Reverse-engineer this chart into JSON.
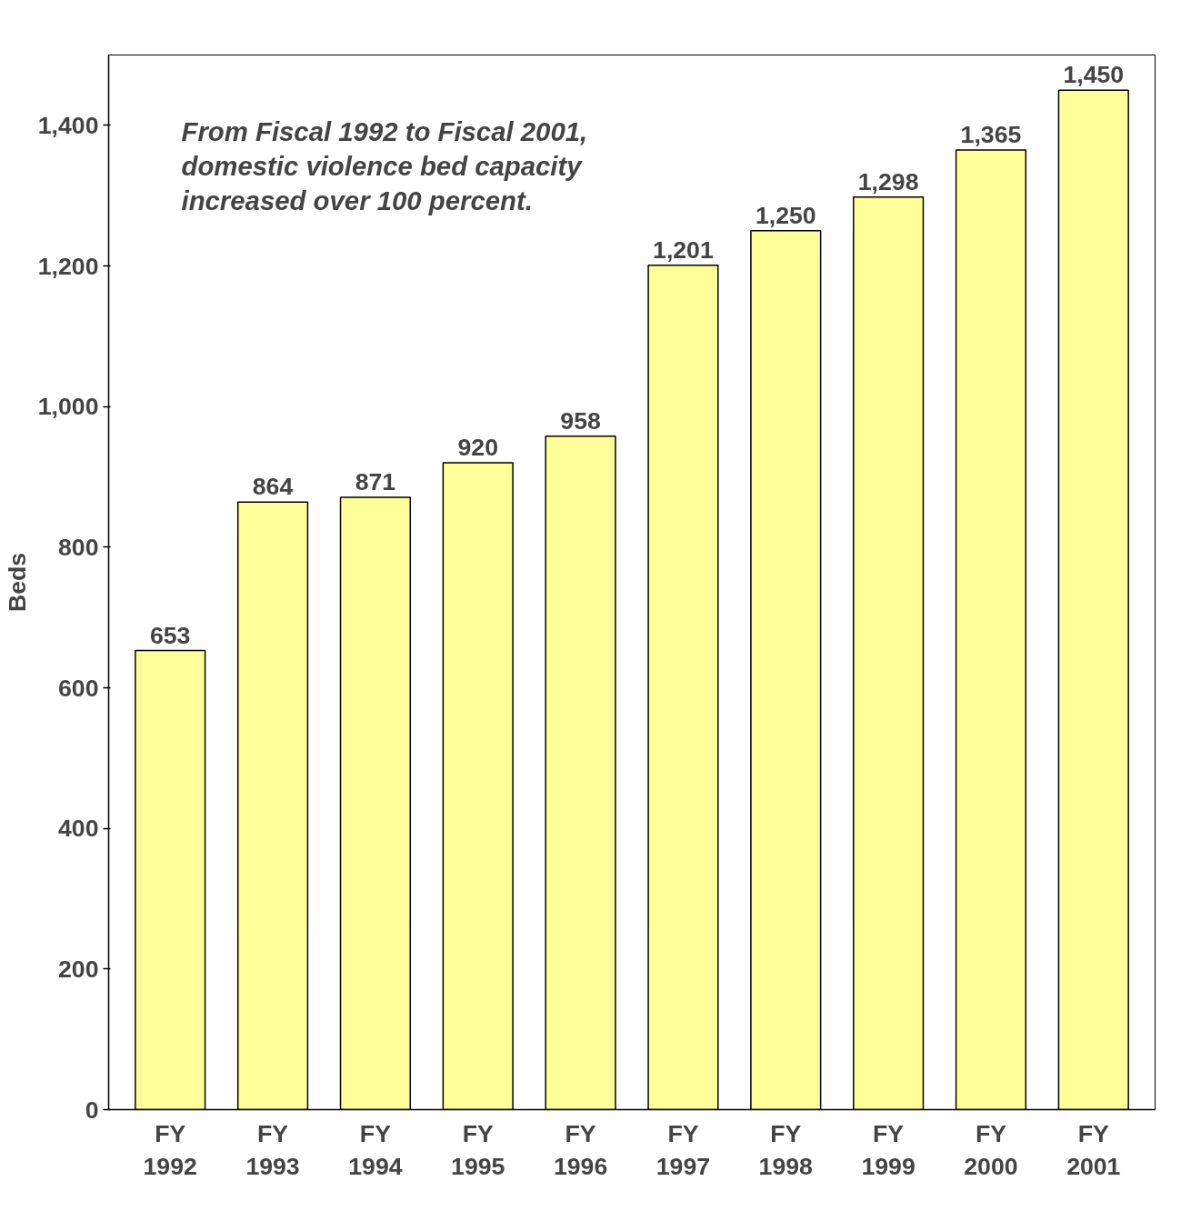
{
  "chart_data": {
    "type": "bar",
    "ylabel": "Beds",
    "categories": [
      "FY 1992",
      "FY 1993",
      "FY 1994",
      "FY 1995",
      "FY 1996",
      "FY 1997",
      "FY 1998",
      "FY 1999",
      "FY 2000",
      "FY 2001"
    ],
    "values": [
      653,
      864,
      871,
      920,
      958,
      1201,
      1250,
      1298,
      1365,
      1450
    ],
    "color": "#ffff99",
    "ylim": [
      0,
      1500
    ],
    "yticks": [
      {
        "value": 0,
        "label": "0"
      },
      {
        "value": 200,
        "label": "200"
      },
      {
        "value": 400,
        "label": "400"
      },
      {
        "value": 600,
        "label": "600"
      },
      {
        "value": 800,
        "label": "800"
      },
      {
        "value": 1000,
        "label": "1,000"
      },
      {
        "value": 1200,
        "label": "1,200"
      },
      {
        "value": 1400,
        "label": "1,400"
      }
    ],
    "value_labels": [
      "653",
      "864",
      "871",
      "920",
      "958",
      "1,201",
      "1,250",
      "1,298",
      "1,365",
      "1,450"
    ],
    "grid": false,
    "annotations": [
      "From Fiscal 1992 to Fiscal 2001, domestic violence bed capacity increased over 100 percent."
    ]
  }
}
